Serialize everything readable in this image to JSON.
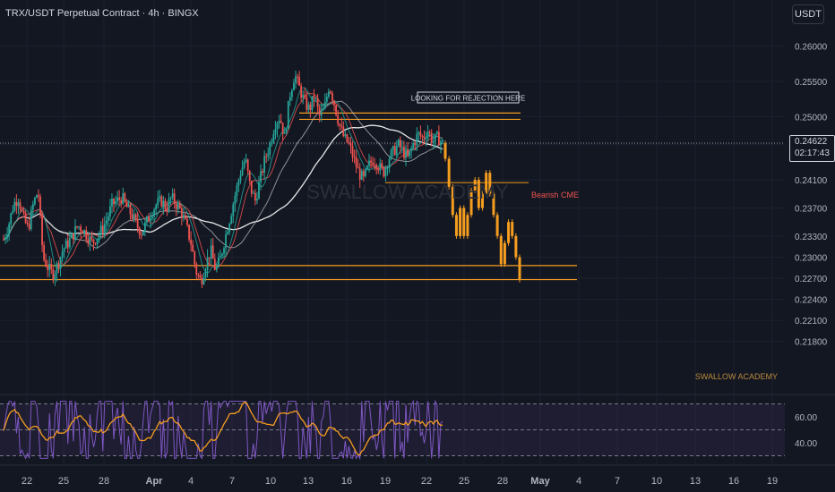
{
  "header": {
    "title": "TRX/USDT Perpetual Contract · 4h · BINGX",
    "currency_button": "USDT"
  },
  "price_tag": {
    "price": "0.24622",
    "countdown": "02:17:43"
  },
  "annotations": {
    "rejection_label": "LOOKING FOR REJECTION HERE",
    "bearish_label": "Bearish CME",
    "watermark": "SWALLOW ACADEMY",
    "watermark_center": "SWALLOW ACADEMY"
  },
  "colors": {
    "up": "#26a69a",
    "down": "#ef5350",
    "projection": "#f59d1f",
    "level": "#f59d1f",
    "ma_slow": "#ffffff",
    "ma_fast": "#ef5350",
    "rsi": "#7e57c2",
    "rsi_ma": "#f59d1f",
    "bearish": "#ef5350"
  },
  "chart_data": {
    "type": "candlestick",
    "ylim": [
      0.2165,
      0.2615
    ],
    "y_ticks": [
      "0.26000",
      "0.25500",
      "0.25000",
      "0.24600",
      "0.24100",
      "0.23700",
      "0.23300",
      "0.23000",
      "0.22700",
      "0.22400",
      "0.22100",
      "0.21800"
    ],
    "x_ticks": [
      "22",
      "25",
      "28",
      "Apr",
      "4",
      "7",
      "10",
      "13",
      "16",
      "19",
      "22",
      "25",
      "28",
      "May",
      "4",
      "7",
      "10",
      "13",
      "16",
      "19"
    ],
    "current_price": 0.24622,
    "levels": {
      "rejection_top": 0.2505,
      "rejection_bottom": 0.2496,
      "bearish_cme": 0.2406,
      "support_top": 0.2288,
      "support_bottom": 0.2268
    },
    "price_path": [
      0.2325,
      0.2345,
      0.2375,
      0.2385,
      0.2355,
      0.234,
      0.2375,
      0.2395,
      0.23,
      0.2285,
      0.2275,
      0.229,
      0.231,
      0.232,
      0.233,
      0.2345,
      0.234,
      0.233,
      0.232,
      0.233,
      0.234,
      0.2355,
      0.2375,
      0.238,
      0.2385,
      0.237,
      0.236,
      0.2345,
      0.2335,
      0.235,
      0.2365,
      0.2375,
      0.238,
      0.237,
      0.2385,
      0.2375,
      0.2365,
      0.2345,
      0.232,
      0.228,
      0.2265,
      0.229,
      0.231,
      0.228,
      0.23,
      0.233,
      0.236,
      0.239,
      0.242,
      0.244,
      0.24,
      0.238,
      0.241,
      0.244,
      0.246,
      0.249,
      0.25,
      0.247,
      0.253,
      0.256,
      0.254,
      0.252,
      0.251,
      0.253,
      0.25,
      0.251,
      0.2545,
      0.252,
      0.249,
      0.247,
      0.246,
      0.244,
      0.242,
      0.241,
      0.243,
      0.244,
      0.243,
      0.242,
      0.244,
      0.245,
      0.246,
      0.245,
      0.244,
      0.246,
      0.2475,
      0.247,
      0.248,
      0.2465,
      0.247,
      0.2462
    ],
    "projection_path": [
      0.2462,
      0.244,
      0.24,
      0.236,
      0.233,
      0.237,
      0.233,
      0.236,
      0.2395,
      0.241,
      0.237,
      0.239,
      0.242,
      0.239,
      0.236,
      0.233,
      0.229,
      0.232,
      0.235,
      0.233,
      0.23,
      0.2268
    ],
    "rsi_ticks": [
      "60.00",
      "40.00"
    ],
    "rsi_ylim": [
      25,
      75
    ]
  }
}
